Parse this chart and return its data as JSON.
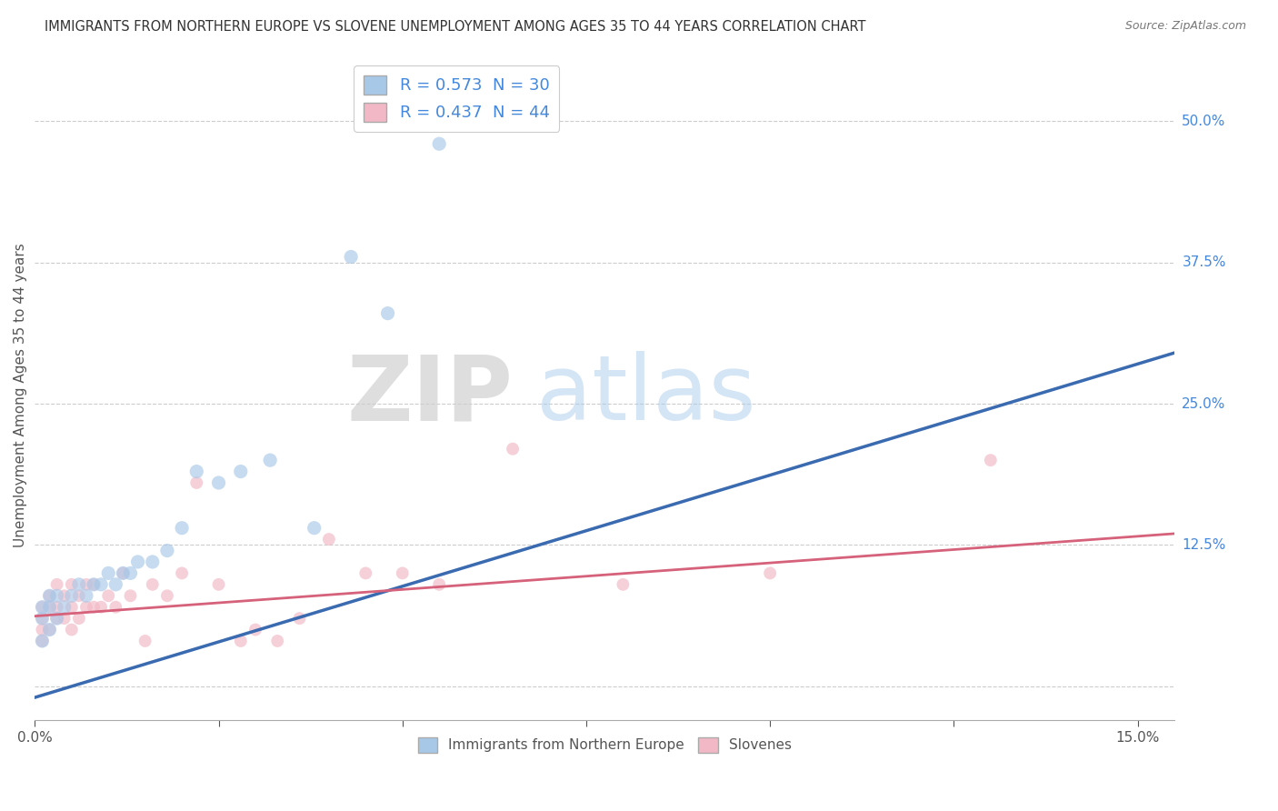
{
  "title": "IMMIGRANTS FROM NORTHERN EUROPE VS SLOVENE UNEMPLOYMENT AMONG AGES 35 TO 44 YEARS CORRELATION CHART",
  "source": "Source: ZipAtlas.com",
  "ylabel": "Unemployment Among Ages 35 to 44 years",
  "xlim": [
    0.0,
    0.155
  ],
  "ylim": [
    -0.03,
    0.545
  ],
  "xticks": [
    0.0,
    0.15
  ],
  "xticklabels": [
    "0.0%",
    "15.0%"
  ],
  "ytick_positions": [
    0.0,
    0.125,
    0.25,
    0.375,
    0.5
  ],
  "ytick_labels": [
    "",
    "12.5%",
    "25.0%",
    "37.5%",
    "50.0%"
  ],
  "R_blue": 0.573,
  "N_blue": 30,
  "R_pink": 0.437,
  "N_pink": 44,
  "legend_labels": [
    "Immigrants from Northern Europe",
    "Slovenes"
  ],
  "watermark_zip": "ZIP",
  "watermark_atlas": "atlas",
  "blue_color": "#a8c8e8",
  "blue_line_color": "#3a6ab0",
  "pink_color": "#f2b8c6",
  "pink_line_color": "#d6617a",
  "blue_line_x0": 0.0,
  "blue_line_y0": -0.01,
  "blue_line_x1": 0.155,
  "blue_line_y1": 0.295,
  "pink_line_x0": 0.0,
  "pink_line_x1": 0.155,
  "pink_line_y0": 0.062,
  "pink_line_y1": 0.135,
  "blue_scatter_x": [
    0.001,
    0.001,
    0.001,
    0.002,
    0.002,
    0.002,
    0.003,
    0.003,
    0.004,
    0.005,
    0.006,
    0.007,
    0.008,
    0.009,
    0.01,
    0.011,
    0.012,
    0.013,
    0.014,
    0.016,
    0.018,
    0.02,
    0.022,
    0.025,
    0.028,
    0.032,
    0.038,
    0.043,
    0.048,
    0.055
  ],
  "blue_scatter_y": [
    0.04,
    0.06,
    0.07,
    0.05,
    0.07,
    0.08,
    0.06,
    0.08,
    0.07,
    0.08,
    0.09,
    0.08,
    0.09,
    0.09,
    0.1,
    0.09,
    0.1,
    0.1,
    0.11,
    0.11,
    0.12,
    0.14,
    0.19,
    0.18,
    0.19,
    0.2,
    0.14,
    0.38,
    0.33,
    0.48
  ],
  "pink_scatter_x": [
    0.001,
    0.001,
    0.001,
    0.001,
    0.002,
    0.002,
    0.002,
    0.003,
    0.003,
    0.003,
    0.004,
    0.004,
    0.005,
    0.005,
    0.005,
    0.006,
    0.006,
    0.007,
    0.007,
    0.008,
    0.008,
    0.009,
    0.01,
    0.011,
    0.012,
    0.013,
    0.015,
    0.016,
    0.018,
    0.02,
    0.022,
    0.025,
    0.028,
    0.03,
    0.033,
    0.036,
    0.04,
    0.045,
    0.05,
    0.055,
    0.065,
    0.08,
    0.1,
    0.13
  ],
  "pink_scatter_y": [
    0.04,
    0.05,
    0.06,
    0.07,
    0.05,
    0.07,
    0.08,
    0.06,
    0.07,
    0.09,
    0.06,
    0.08,
    0.05,
    0.07,
    0.09,
    0.06,
    0.08,
    0.07,
    0.09,
    0.07,
    0.09,
    0.07,
    0.08,
    0.07,
    0.1,
    0.08,
    0.04,
    0.09,
    0.08,
    0.1,
    0.18,
    0.09,
    0.04,
    0.05,
    0.04,
    0.06,
    0.13,
    0.1,
    0.1,
    0.09,
    0.21,
    0.09,
    0.1,
    0.2
  ],
  "blue_size": 120,
  "pink_size": 100
}
